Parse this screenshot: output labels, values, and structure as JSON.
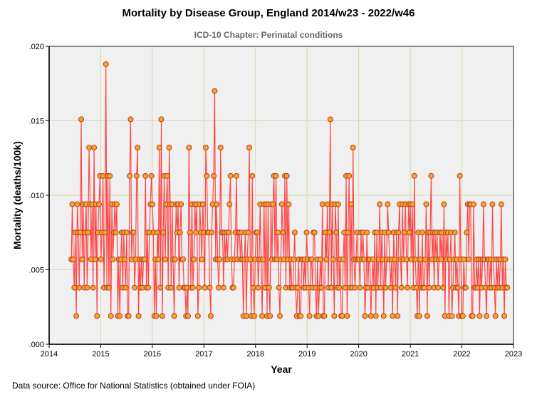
{
  "title": "Mortality by Disease Group, England 2014/w23 - 2022/w46",
  "subtitle": "ICD-10 Chapter: Perinatal conditions",
  "source": "Data source: Office for National Statistics (obtained under FOIA)",
  "colors": {
    "line": "#ff3333",
    "marker_fill": "#f5a623",
    "marker_stroke": "#c0392b",
    "plot_bg": "#f0f0f0",
    "grid": "#dcd6a8"
  },
  "chart_data": {
    "type": "line",
    "title": "Mortality by Disease Group, England 2014/w23 - 2022/w46",
    "subtitle": "ICD-10 Chapter: Perinatal conditions",
    "xlabel": "Year",
    "ylabel": "Mortality (deaths/100k)",
    "xlim": [
      2014,
      2023
    ],
    "ylim": [
      0,
      0.02
    ],
    "xticks": [
      2014,
      2015,
      2016,
      2017,
      2018,
      2019,
      2020,
      2021,
      2022,
      2023
    ],
    "xtick_labels": [
      "2014",
      "2015",
      "2016",
      "2017",
      "2018",
      "2019",
      "2020",
      "2021",
      "2022",
      "2023"
    ],
    "yticks": [
      0,
      0.005,
      0.01,
      0.015,
      0.02
    ],
    "ytick_labels": [
      ".000",
      ".005",
      ".010",
      ".015",
      ".020"
    ],
    "grid": true,
    "x_start": 2014.43,
    "x_step": 0.01916,
    "values": [
      0.0057,
      0.0094,
      0.0057,
      0.0038,
      0.0075,
      0.0019,
      0.0094,
      0.0075,
      0.0038,
      0.0075,
      0.0151,
      0.0057,
      0.0094,
      0.0038,
      0.0075,
      0.0094,
      0.0038,
      0.0075,
      0.0132,
      0.0094,
      0.0057,
      0.0094,
      0.0038,
      0.0132,
      0.0057,
      0.0094,
      0.0019,
      0.0075,
      0.0094,
      0.0113,
      0.0057,
      0.0075,
      0.0113,
      0.0038,
      0.0075,
      0.0188,
      0.0038,
      0.0113,
      0.0038,
      0.0113,
      0.0019,
      0.0094,
      0.0057,
      0.0075,
      0.0094,
      0.0075,
      0.0094,
      0.0019,
      0.0057,
      0.0019,
      0.0057,
      0.0075,
      0.0038,
      0.0075,
      0.0057,
      0.0038,
      0.0075,
      0.0019,
      0.0019,
      0.0113,
      0.0151,
      0.0057,
      0.0075,
      0.0075,
      0.0038,
      0.0057,
      0.0113,
      0.0132,
      0.0019,
      0.0057,
      0.0038,
      0.0057,
      0.0038,
      0.0057,
      0.0057,
      0.0113,
      0.0038,
      0.0075,
      0.0038,
      0.0075,
      0.0094,
      0.0113,
      0.0094,
      0.0075,
      0.0019,
      0.0057,
      0.0019,
      0.0075,
      0.0057,
      0.0132,
      0.0038,
      0.0151,
      0.0019,
      0.0075,
      0.0113,
      0.0057,
      0.0094,
      0.0113,
      0.0038,
      0.0132,
      0.0094,
      0.0038,
      0.0094,
      0.0057,
      0.0019,
      0.0057,
      0.0094,
      0.0075,
      0.0094,
      0.0038,
      0.0075,
      0.0094,
      0.0057,
      0.0057,
      0.0038,
      0.0038,
      0.0019,
      0.0038,
      0.0019,
      0.0132,
      0.0075,
      0.0038,
      0.0094,
      0.0038,
      0.0057,
      0.0094,
      0.0075,
      0.0094,
      0.0019,
      0.0038,
      0.0094,
      0.0075,
      0.0057,
      0.0094,
      0.0075,
      0.0038,
      0.0132,
      0.0113,
      0.0075,
      0.0075,
      0.0038,
      0.0019,
      0.0075,
      0.0094,
      0.0113,
      0.017,
      0.0057,
      0.0094,
      0.0057,
      0.0038,
      0.0057,
      0.0132,
      0.0075,
      0.0075,
      0.0038,
      0.0075,
      0.0057,
      0.0075,
      0.0057,
      0.0075,
      0.0094,
      0.0113,
      0.0057,
      0.0038,
      0.0038,
      0.0057,
      0.0075,
      0.0113,
      0.0057,
      0.0075,
      0.0075,
      0.0057,
      0.0075,
      0.0057,
      0.0019,
      0.0057,
      0.0075,
      0.0019,
      0.0057,
      0.0075,
      0.0132,
      0.0057,
      0.0019,
      0.0113,
      0.0038,
      0.0019,
      0.0057,
      0.0075,
      0.0075,
      0.0038,
      0.0057,
      0.0094,
      0.0057,
      0.0019,
      0.0057,
      0.0094,
      0.0038,
      0.0094,
      0.0019,
      0.0094,
      0.0038,
      0.0019,
      0.0094,
      0.0057,
      0.0094,
      0.0113,
      0.0057,
      0.0113,
      0.0057,
      0.0075,
      0.0038,
      0.0019,
      0.0057,
      0.0094,
      0.0075,
      0.0057,
      0.0113,
      0.0038,
      0.0113,
      0.0057,
      0.0094,
      0.0038,
      0.0057,
      0.0038,
      0.0038,
      0.0057,
      0.0075,
      0.0038,
      0.0019,
      0.0038,
      0.0057,
      0.0019,
      0.0019,
      0.0057,
      0.0057,
      0.0038,
      0.0057,
      0.0038,
      0.0075,
      0.0057,
      0.0038,
      0.0019,
      0.0057,
      0.0057,
      0.0038,
      0.0075,
      0.0075,
      0.0038,
      0.0019,
      0.0057,
      0.0019,
      0.0038,
      0.0057,
      0.0038,
      0.0094,
      0.0019,
      0.0019,
      0.0075,
      0.0057,
      0.0094,
      0.0038,
      0.0075,
      0.0151,
      0.0038,
      0.0094,
      0.0057,
      0.0019,
      0.0094,
      0.0075,
      0.0038,
      0.0094,
      0.0038,
      0.0057,
      0.0019,
      0.0019,
      0.0057,
      0.0075,
      0.0038,
      0.0113,
      0.0019,
      0.0075,
      0.0113,
      0.0038,
      0.0094,
      0.0038,
      0.0132,
      0.0057,
      0.0038,
      0.0057,
      0.0075,
      0.0057,
      0.0057,
      0.0038,
      0.0075,
      0.0057,
      0.0075,
      0.0057,
      0.0019,
      0.0038,
      0.0075,
      0.0038,
      0.0057,
      0.0057,
      0.0019,
      0.0038,
      0.0057,
      0.0038,
      0.0075,
      0.0019,
      0.0075,
      0.0038,
      0.0057,
      0.0094,
      0.0038,
      0.0075,
      0.0057,
      0.0019,
      0.0075,
      0.0038,
      0.0057,
      0.0094,
      0.0075,
      0.0057,
      0.0038,
      0.0057,
      0.0019,
      0.0075,
      0.0057,
      0.0038,
      0.0075,
      0.0019,
      0.0075,
      0.0094,
      0.0057,
      0.0038,
      0.0094,
      0.0057,
      0.0075,
      0.0094,
      0.0057,
      0.0038,
      0.0094,
      0.0075,
      0.0094,
      0.0057,
      0.0094,
      0.0038,
      0.0113,
      0.0057,
      0.0038,
      0.0019,
      0.0075,
      0.0019,
      0.0057,
      0.0038,
      0.0075,
      0.0038,
      0.0038,
      0.0057,
      0.0094,
      0.0019,
      0.0075,
      0.0038,
      0.0075,
      0.0113,
      0.0057,
      0.0075,
      0.0038,
      0.0075,
      0.0057,
      0.0075,
      0.0038,
      0.0057,
      0.0075,
      0.0057,
      0.0075,
      0.0038,
      0.0094,
      0.0019,
      0.0075,
      0.0057,
      0.0075,
      0.0019,
      0.0057,
      0.0075,
      0.0019,
      0.0038,
      0.0057,
      0.0075,
      0.0038,
      0.0057,
      0.0038,
      0.0019,
      0.0113,
      0.0057,
      0.0019,
      0.0019,
      0.0057,
      0.0038,
      0.0038,
      0.0075,
      0.0094,
      0.0057,
      0.0094,
      0.0094,
      0.0019,
      0.0019,
      0.0094,
      0.0038,
      0.0038,
      0.0057,
      0.0038,
      0.0057,
      0.0019,
      0.0057,
      0.0038,
      0.0057,
      0.0094,
      0.0057,
      0.0038,
      0.0019,
      0.0057,
      0.0057,
      0.0038,
      0.0057,
      0.0038,
      0.0094,
      0.0057,
      0.0038,
      0.0019,
      0.0057,
      0.0038,
      0.0057,
      0.0038,
      0.0057,
      0.0094,
      0.0038,
      0.0057,
      0.0019,
      0.0057,
      0.0038,
      0.0038
    ]
  }
}
